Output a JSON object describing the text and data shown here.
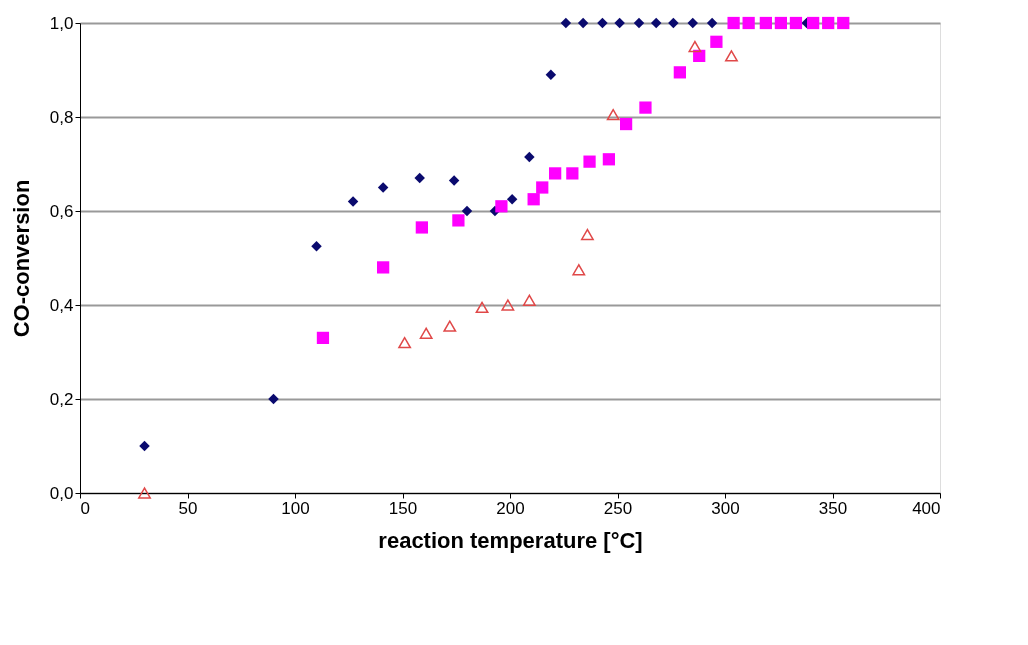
{
  "chart_data": {
    "type": "scatter",
    "xlabel": "reaction temperature [°C]",
    "ylabel": "CO-conversion",
    "xlim": [
      0,
      400
    ],
    "xticks": [
      0,
      50,
      100,
      150,
      200,
      250,
      300,
      350,
      400
    ],
    "ylim": [
      0,
      1
    ],
    "yticks": [
      {
        "value": 0,
        "label": "0,0"
      },
      {
        "value": 0.2,
        "label": "0,2"
      },
      {
        "value": 0.4,
        "label": "0,4"
      },
      {
        "value": 0.6,
        "label": "0,6"
      },
      {
        "value": 0.8,
        "label": "0,8"
      },
      {
        "value": 1,
        "label": "1,0"
      }
    ],
    "grid": "y",
    "series": [
      {
        "color": "#0a0a6e",
        "marker": "diamond",
        "x": [
          30,
          90,
          110,
          127,
          141,
          158,
          174,
          180,
          193,
          201,
          209,
          219,
          226,
          234,
          243,
          251,
          260,
          268,
          276,
          285,
          294,
          303,
          312,
          321,
          330,
          338
        ],
        "values": [
          0.1,
          0.2,
          0.525,
          0.62,
          0.65,
          0.67,
          0.665,
          0.6,
          0.6,
          0.625,
          0.715,
          0.89,
          1,
          1,
          1,
          1,
          1,
          1,
          1,
          1,
          1,
          null,
          null,
          null,
          null,
          1
        ]
      },
      {
        "color": "#ff00ff",
        "marker": "square",
        "x": [
          113,
          141,
          159,
          176,
          196,
          211,
          215,
          221,
          229,
          237,
          246,
          254,
          263,
          279,
          288,
          296,
          304,
          311,
          319,
          326,
          333,
          341,
          348,
          355
        ],
        "values": [
          0.33,
          0.48,
          0.565,
          0.58,
          0.61,
          0.625,
          0.65,
          0.68,
          0.68,
          0.705,
          0.71,
          0.785,
          0.82,
          0.895,
          0.93,
          0.96,
          1,
          1,
          1,
          1,
          1,
          1,
          1,
          1
        ]
      },
      {
        "color": "#e04848",
        "marker": "triangle",
        "x": [
          30,
          151,
          161,
          172,
          187,
          199,
          209,
          232,
          236,
          248,
          286,
          303
        ],
        "values": [
          0,
          0.32,
          0.34,
          0.355,
          0.395,
          0.4,
          0.41,
          0.475,
          0.55,
          0.805,
          0.95,
          0.93
        ]
      }
    ]
  }
}
